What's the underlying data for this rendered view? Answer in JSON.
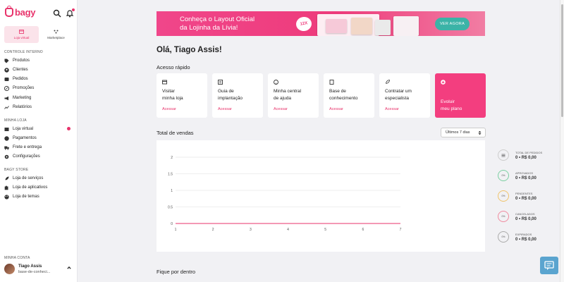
{
  "sidebar": {
    "logo": "bagy",
    "tabs": [
      {
        "label": "Loja virtual",
        "active": true
      },
      {
        "label": "Marketplace",
        "active": false
      }
    ],
    "sections": [
      {
        "title": "CONTROLE INTERNO",
        "items": [
          "Produtos",
          "Clientes",
          "Pedidos",
          "Promoções",
          "Marketing",
          "Relatórios"
        ]
      },
      {
        "title": "MINHA LOJA",
        "items": [
          "Loja virtual",
          "Pagamentos",
          "Frete e entrega",
          "Configurações"
        ]
      },
      {
        "title": "BAGY STORE",
        "items": [
          "Loja de serviços",
          "Loja de aplicativos",
          "Loja de temas"
        ]
      }
    ],
    "account": {
      "title": "MINHA CONTA",
      "name": "Tiago Assis",
      "sub": "base-de-conheci..."
    }
  },
  "banner": {
    "line1": "Conheça o Layout Oficial",
    "line2": "da Lojinha da Lívia!",
    "badge": "12X",
    "cta": "VER AGORA"
  },
  "main": {
    "greeting": "Olá, Tiago Assis!",
    "quick_title": "Acesso rápido",
    "quick_cards": [
      {
        "line1": "Visitar",
        "line2": "minha loja",
        "action": "Acessar"
      },
      {
        "line1": "Guia de",
        "line2": "implantação",
        "action": "Acessar"
      },
      {
        "line1": "Minha central",
        "line2": "de ajuda",
        "action": "Acessar"
      },
      {
        "line1": "Base de",
        "line2": "conhecimento",
        "action": "Acessar"
      },
      {
        "line1": "Contratar um",
        "line2": "especialista",
        "action": "Acessar"
      },
      {
        "line1": "Evoluir",
        "line2": "meu plano",
        "action": ""
      }
    ],
    "sales_title": "Total de vendas",
    "period": "Últimos 7 dias",
    "stats": [
      {
        "label": "TOTAL DE PEDIDOS",
        "value": "0 • R$ 0,00",
        "ring": "",
        "color": "#bbbbbb"
      },
      {
        "label": "APROVADOS",
        "value": "0 • R$ 0,00",
        "ring": "0%",
        "color": "#7ccfa2"
      },
      {
        "label": "PENDENTES",
        "value": "0 • R$ 0,00",
        "ring": "0%",
        "color": "#f0c36b"
      },
      {
        "label": "CANCELADOS",
        "value": "0 • R$ 0,00",
        "ring": "0%",
        "color": "#f08a9e"
      },
      {
        "label": "EXPIRADOS",
        "value": "0 • R$ 0,00",
        "ring": "0%",
        "color": "#aaaaaa"
      }
    ],
    "footer_title": "Fique por dentro"
  },
  "chart_data": {
    "type": "line",
    "x": [
      1,
      2,
      3,
      4,
      5,
      6,
      7
    ],
    "series": [
      {
        "values": [
          0,
          0,
          0,
          0,
          0,
          0,
          0
        ]
      }
    ],
    "yticks": [
      "0",
      "0.5",
      "1",
      "1.5",
      "2"
    ],
    "ylim": [
      0,
      2
    ],
    "grid": true,
    "line_color": "#e8336b"
  }
}
